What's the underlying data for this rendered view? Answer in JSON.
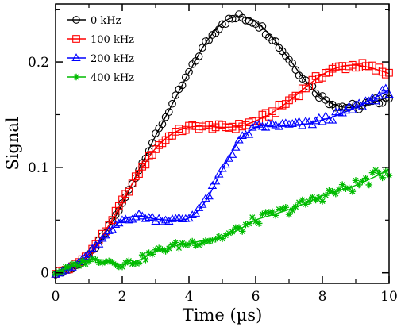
{
  "chart_data": {
    "type": "scatter",
    "title": "",
    "xlabel": "Time (µs)",
    "ylabel": "Signal",
    "xlim": [
      0,
      10
    ],
    "ylim": [
      -0.01,
      0.255
    ],
    "x_ticks": [
      0,
      2,
      4,
      6,
      8,
      10
    ],
    "x_tick_labels": [
      "0",
      "2",
      "4",
      "6",
      "8",
      "10"
    ],
    "y_ticks": [
      0,
      0.1,
      0.2
    ],
    "y_tick_labels": [
      "0",
      "0.1",
      "0.2"
    ],
    "grid": false,
    "legend_position": "top-left",
    "series": [
      {
        "name": "0 kHz",
        "color": "#000000",
        "marker": "circle",
        "fit_x": [
          0,
          0.5,
          1.0,
          1.5,
          2.0,
          2.5,
          3.0,
          3.5,
          4.0,
          4.5,
          5.0,
          5.5,
          6.0,
          6.5,
          7.0,
          7.5,
          8.0,
          8.5,
          9.0,
          9.5,
          10.0
        ],
        "fit_y": [
          0.0,
          0.004,
          0.016,
          0.038,
          0.065,
          0.098,
          0.13,
          0.16,
          0.19,
          0.218,
          0.237,
          0.243,
          0.238,
          0.223,
          0.203,
          0.182,
          0.166,
          0.158,
          0.157,
          0.161,
          0.167
        ]
      },
      {
        "name": "100 kHz",
        "color": "#ff0000",
        "marker": "square",
        "fit_x": [
          0,
          0.5,
          1.0,
          1.5,
          2.0,
          2.5,
          3.0,
          3.5,
          4.0,
          4.5,
          5.0,
          5.5,
          6.0,
          6.5,
          7.0,
          7.5,
          8.0,
          8.5,
          9.0,
          9.5,
          10.0
        ],
        "fit_y": [
          0.0,
          0.005,
          0.018,
          0.04,
          0.068,
          0.095,
          0.118,
          0.132,
          0.138,
          0.139,
          0.138,
          0.139,
          0.144,
          0.152,
          0.163,
          0.176,
          0.188,
          0.195,
          0.197,
          0.194,
          0.189
        ]
      },
      {
        "name": "200 kHz",
        "color": "#0000ff",
        "marker": "triangle",
        "fit_x": [
          0,
          0.5,
          1.0,
          1.5,
          2.0,
          2.5,
          3.0,
          3.5,
          4.0,
          4.5,
          5.0,
          5.5,
          6.0,
          6.5,
          7.0,
          7.5,
          8.0,
          8.5,
          9.0,
          9.5,
          10.0
        ],
        "fit_y": [
          0.0,
          0.005,
          0.018,
          0.035,
          0.05,
          0.054,
          0.051,
          0.05,
          0.052,
          0.068,
          0.098,
          0.125,
          0.138,
          0.14,
          0.14,
          0.141,
          0.145,
          0.15,
          0.157,
          0.165,
          0.173
        ]
      },
      {
        "name": "400 kHz",
        "color": "#00bb00",
        "marker": "star",
        "fit_x": [
          0,
          0.5,
          1.0,
          1.5,
          2.0,
          2.5,
          3.0,
          3.5,
          4.0,
          4.5,
          5.0,
          5.5,
          6.0,
          6.5,
          7.0,
          7.5,
          8.0,
          8.5,
          9.0,
          9.5,
          10.0
        ],
        "fit_y": [
          0.0,
          0.006,
          0.012,
          0.012,
          0.008,
          0.012,
          0.02,
          0.025,
          0.028,
          0.031,
          0.034,
          0.041,
          0.05,
          0.055,
          0.06,
          0.066,
          0.073,
          0.078,
          0.083,
          0.09,
          0.098
        ]
      }
    ]
  }
}
